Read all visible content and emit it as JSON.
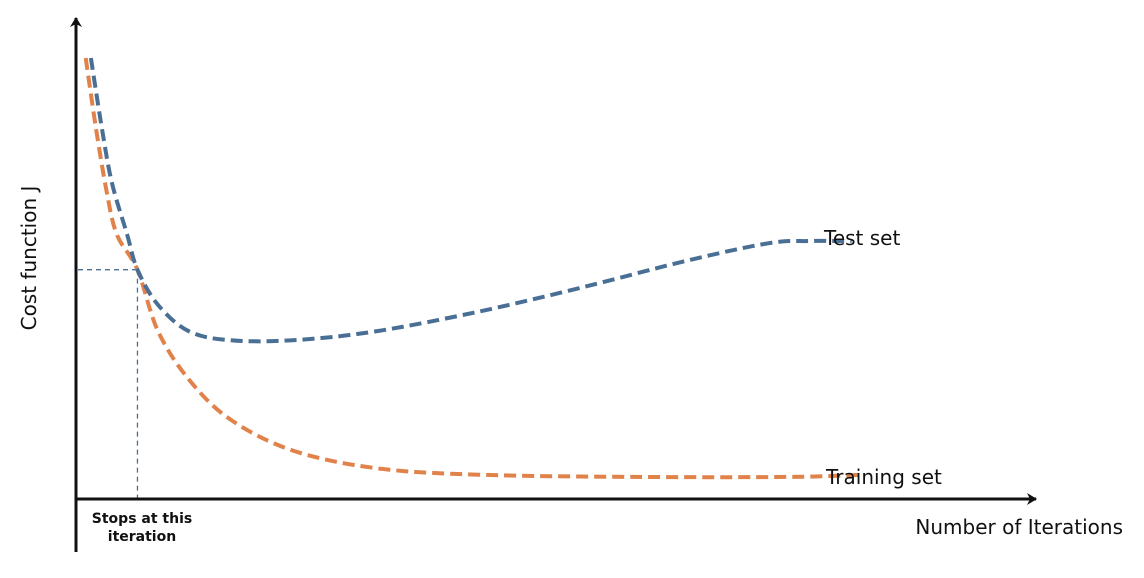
{
  "chart_data": {
    "type": "line",
    "title": "",
    "xlabel": "Number of Iterations",
    "ylabel": "Cost function J",
    "grid": false,
    "legend": "inline labels at line ends",
    "x_range": [
      0,
      100
    ],
    "y_range": [
      0,
      100
    ],
    "annotation": "Stops at this iteration",
    "stop_point": {
      "x": 7,
      "y": 52
    },
    "series": [
      {
        "name": "Test set",
        "color": "#4a6f95",
        "style": "dashed",
        "points": [
          {
            "x": 2.5,
            "y": 100
          },
          {
            "x": 3.5,
            "y": 85
          },
          {
            "x": 4.5,
            "y": 72
          },
          {
            "x": 6,
            "y": 60
          },
          {
            "x": 7,
            "y": 52
          },
          {
            "x": 9,
            "y": 44
          },
          {
            "x": 12,
            "y": 38
          },
          {
            "x": 16,
            "y": 36
          },
          {
            "x": 22,
            "y": 36
          },
          {
            "x": 30,
            "y": 38
          },
          {
            "x": 40,
            "y": 42.5
          },
          {
            "x": 50,
            "y": 48
          },
          {
            "x": 60,
            "y": 54
          },
          {
            "x": 68,
            "y": 58
          },
          {
            "x": 72,
            "y": 58.5
          },
          {
            "x": 76,
            "y": 58.5
          }
        ]
      },
      {
        "name": "Training set",
        "color": "#e0824a",
        "style": "dashed",
        "points": [
          {
            "x": 2,
            "y": 100
          },
          {
            "x": 3,
            "y": 84
          },
          {
            "x": 4,
            "y": 70
          },
          {
            "x": 5,
            "y": 60
          },
          {
            "x": 7,
            "y": 52
          },
          {
            "x": 9,
            "y": 38
          },
          {
            "x": 12,
            "y": 27
          },
          {
            "x": 16,
            "y": 18
          },
          {
            "x": 22,
            "y": 11
          },
          {
            "x": 30,
            "y": 7
          },
          {
            "x": 40,
            "y": 5.5
          },
          {
            "x": 55,
            "y": 5
          },
          {
            "x": 70,
            "y": 5
          },
          {
            "x": 77,
            "y": 5.5
          }
        ]
      }
    ]
  },
  "colors": {
    "axis": "#111111",
    "guide": "#4a6f95"
  }
}
